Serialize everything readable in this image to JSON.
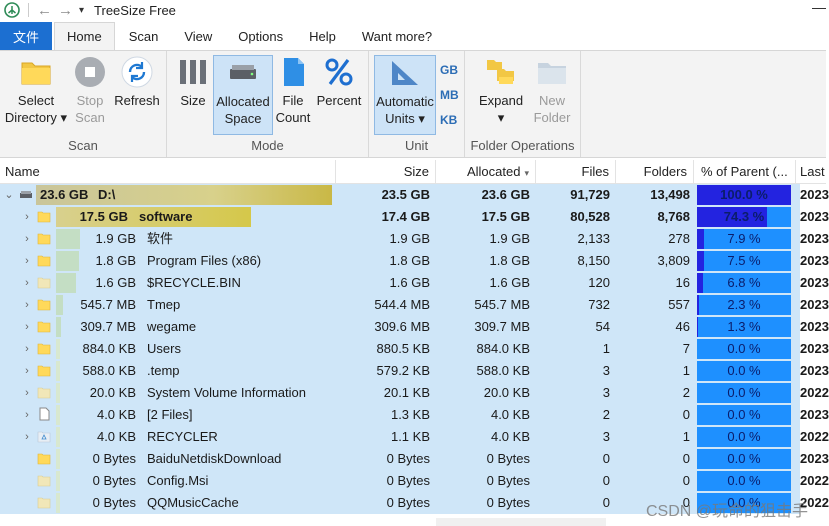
{
  "window": {
    "title": "TreeSize Free",
    "colors": {
      "accent": "#1c6fd1",
      "row_bg": "#cfe6f8",
      "pct_bar": "#1e90ff",
      "pct_fill": "#2323e0"
    }
  },
  "tabs": [
    {
      "label": "文件",
      "active": false,
      "file": true
    },
    {
      "label": "Home",
      "active": true
    },
    {
      "label": "Scan",
      "active": false
    },
    {
      "label": "View",
      "active": false
    },
    {
      "label": "Options",
      "active": false
    },
    {
      "label": "Help",
      "active": false
    },
    {
      "label": "Want more?",
      "active": false
    }
  ],
  "ribbon": {
    "scan": {
      "label": "Scan",
      "select_directory": {
        "line1": "Select",
        "line2": "Directory ▾",
        "icon": "folder-icon"
      },
      "stop_scan": {
        "line1": "Stop",
        "line2": "Scan",
        "icon": "stop-icon"
      },
      "refresh": {
        "line1": "Refresh",
        "icon": "refresh-icon"
      }
    },
    "mode": {
      "label": "Mode",
      "size": {
        "line1": "Size",
        "icon": "bars-icon"
      },
      "allocated_space": {
        "line1": "Allocated",
        "line2": "Space",
        "icon": "drive-icon"
      },
      "file_count": {
        "line1": "File",
        "line2": "Count",
        "icon": "file-count-icon"
      },
      "percent": {
        "line1": "Percent",
        "icon": "percent-icon"
      }
    },
    "unit": {
      "label": "Unit",
      "automatic_units": {
        "line1": "Automatic",
        "line2": "Units ▾",
        "icon": "ruler-triangle-icon"
      },
      "gb": "GB",
      "mb": "MB",
      "kb": "KB"
    },
    "folder_ops": {
      "label": "Folder Operations",
      "expand": {
        "line1": "Expand",
        "line2": "▾",
        "icon": "expand-folders-icon"
      },
      "new_folder": {
        "line1": "New",
        "line2": "Folder",
        "icon": "new-folder-icon"
      }
    }
  },
  "columns": {
    "name": "Name",
    "size": "Size",
    "allocated": "Allocated",
    "files": "Files",
    "folders": "Folders",
    "pct_parent": "% of Parent (...",
    "last": "Last"
  },
  "rows": [
    {
      "level": 0,
      "expander": "⌄",
      "icon": "drive-icon",
      "size_label": "23.6 GB",
      "name": "D:\\",
      "size": "23.5 GB",
      "allocated": "23.6 GB",
      "files": "91,729",
      "folders": "13,498",
      "pct": 100.0,
      "pct_label": "100.0 %",
      "last": "2023",
      "bold": true,
      "bar": 1.0
    },
    {
      "level": 1,
      "expander": "›",
      "icon": "folder-icon",
      "size_label": "17.5 GB",
      "name": "software",
      "size": "17.4 GB",
      "allocated": "17.5 GB",
      "files": "80,528",
      "folders": "8,768",
      "pct": 74.3,
      "pct_label": "74.3 %",
      "last": "2023",
      "bold": true,
      "bar": 0.743
    },
    {
      "level": 1,
      "expander": "›",
      "icon": "folder-icon",
      "size_label": "1.9 GB",
      "name": "软件",
      "size": "1.9 GB",
      "allocated": "1.9 GB",
      "files": "2,133",
      "folders": "278",
      "pct": 7.9,
      "pct_label": "7.9 %",
      "last": "2023",
      "bold": false,
      "bar": 0.079
    },
    {
      "level": 1,
      "expander": "›",
      "icon": "folder-icon",
      "size_label": "1.8 GB",
      "name": "Program Files (x86)",
      "size": "1.8 GB",
      "allocated": "1.8 GB",
      "files": "8,150",
      "folders": "3,809",
      "pct": 7.5,
      "pct_label": "7.5 %",
      "last": "2023",
      "bold": false,
      "bar": 0.075
    },
    {
      "level": 1,
      "expander": "›",
      "icon": "system-folder-icon",
      "size_label": "1.6 GB",
      "name": "$RECYCLE.BIN",
      "size": "1.6 GB",
      "allocated": "1.6 GB",
      "files": "120",
      "folders": "16",
      "pct": 6.8,
      "pct_label": "6.8 %",
      "last": "2023",
      "bold": false,
      "bar": 0.068
    },
    {
      "level": 1,
      "expander": "›",
      "icon": "folder-icon",
      "size_label": "545.7 MB",
      "name": "Tmep",
      "size": "544.4 MB",
      "allocated": "545.7 MB",
      "files": "732",
      "folders": "557",
      "pct": 2.3,
      "pct_label": "2.3 %",
      "last": "2023",
      "bold": false,
      "bar": 0.023
    },
    {
      "level": 1,
      "expander": "›",
      "icon": "folder-icon",
      "size_label": "309.7 MB",
      "name": "wegame",
      "size": "309.6 MB",
      "allocated": "309.7 MB",
      "files": "54",
      "folders": "46",
      "pct": 1.3,
      "pct_label": "1.3 %",
      "last": "2023",
      "bold": false,
      "bar": 0.013
    },
    {
      "level": 1,
      "expander": "›",
      "icon": "folder-icon",
      "size_label": "884.0 KB",
      "name": "Users",
      "size": "880.5 KB",
      "allocated": "884.0 KB",
      "files": "1",
      "folders": "7",
      "pct": 0.0,
      "pct_label": "0.0 %",
      "last": "2023",
      "bold": false,
      "bar": 0.0
    },
    {
      "level": 1,
      "expander": "›",
      "icon": "folder-icon",
      "size_label": "588.0 KB",
      "name": ".temp",
      "size": "579.2 KB",
      "allocated": "588.0 KB",
      "files": "3",
      "folders": "1",
      "pct": 0.0,
      "pct_label": "0.0 %",
      "last": "2023",
      "bold": false,
      "bar": 0.0
    },
    {
      "level": 1,
      "expander": "›",
      "icon": "system-folder-icon",
      "size_label": "20.0 KB",
      "name": "System Volume Information",
      "size": "20.1 KB",
      "allocated": "20.0 KB",
      "files": "3",
      "folders": "2",
      "pct": 0.0,
      "pct_label": "0.0 %",
      "last": "2022",
      "bold": false,
      "bar": 0.0
    },
    {
      "level": 1,
      "expander": "›",
      "icon": "file-icon",
      "size_label": "4.0 KB",
      "name": "[2 Files]",
      "size": "1.3 KB",
      "allocated": "4.0 KB",
      "files": "2",
      "folders": "0",
      "pct": 0.0,
      "pct_label": "0.0 %",
      "last": "2023",
      "bold": false,
      "bar": 0.0
    },
    {
      "level": 1,
      "expander": "›",
      "icon": "recycler-icon",
      "size_label": "4.0 KB",
      "name": "RECYCLER",
      "size": "1.1 KB",
      "allocated": "4.0 KB",
      "files": "3",
      "folders": "1",
      "pct": 0.0,
      "pct_label": "0.0 %",
      "last": "2022",
      "bold": false,
      "bar": 0.0
    },
    {
      "level": 1,
      "expander": "",
      "icon": "folder-icon",
      "size_label": "0 Bytes",
      "name": "BaiduNetdiskDownload",
      "size": "0 Bytes",
      "allocated": "0 Bytes",
      "files": "0",
      "folders": "0",
      "pct": 0.0,
      "pct_label": "0.0 %",
      "last": "2023",
      "bold": false,
      "bar": 0.0
    },
    {
      "level": 1,
      "expander": "",
      "icon": "system-folder-icon",
      "size_label": "0 Bytes",
      "name": "Config.Msi",
      "size": "0 Bytes",
      "allocated": "0 Bytes",
      "files": "0",
      "folders": "0",
      "pct": 0.0,
      "pct_label": "0.0 %",
      "last": "2022",
      "bold": false,
      "bar": 0.0
    },
    {
      "level": 1,
      "expander": "",
      "icon": "system-folder-icon",
      "size_label": "0 Bytes",
      "name": "QQMusicCache",
      "size": "0 Bytes",
      "allocated": "0 Bytes",
      "files": "0",
      "folders": "0",
      "pct": 0.0,
      "pct_label": "0.0 %",
      "last": "2022",
      "bold": false,
      "bar": 0.0
    }
  ],
  "watermark": "CSDN @玩命的狙击手"
}
